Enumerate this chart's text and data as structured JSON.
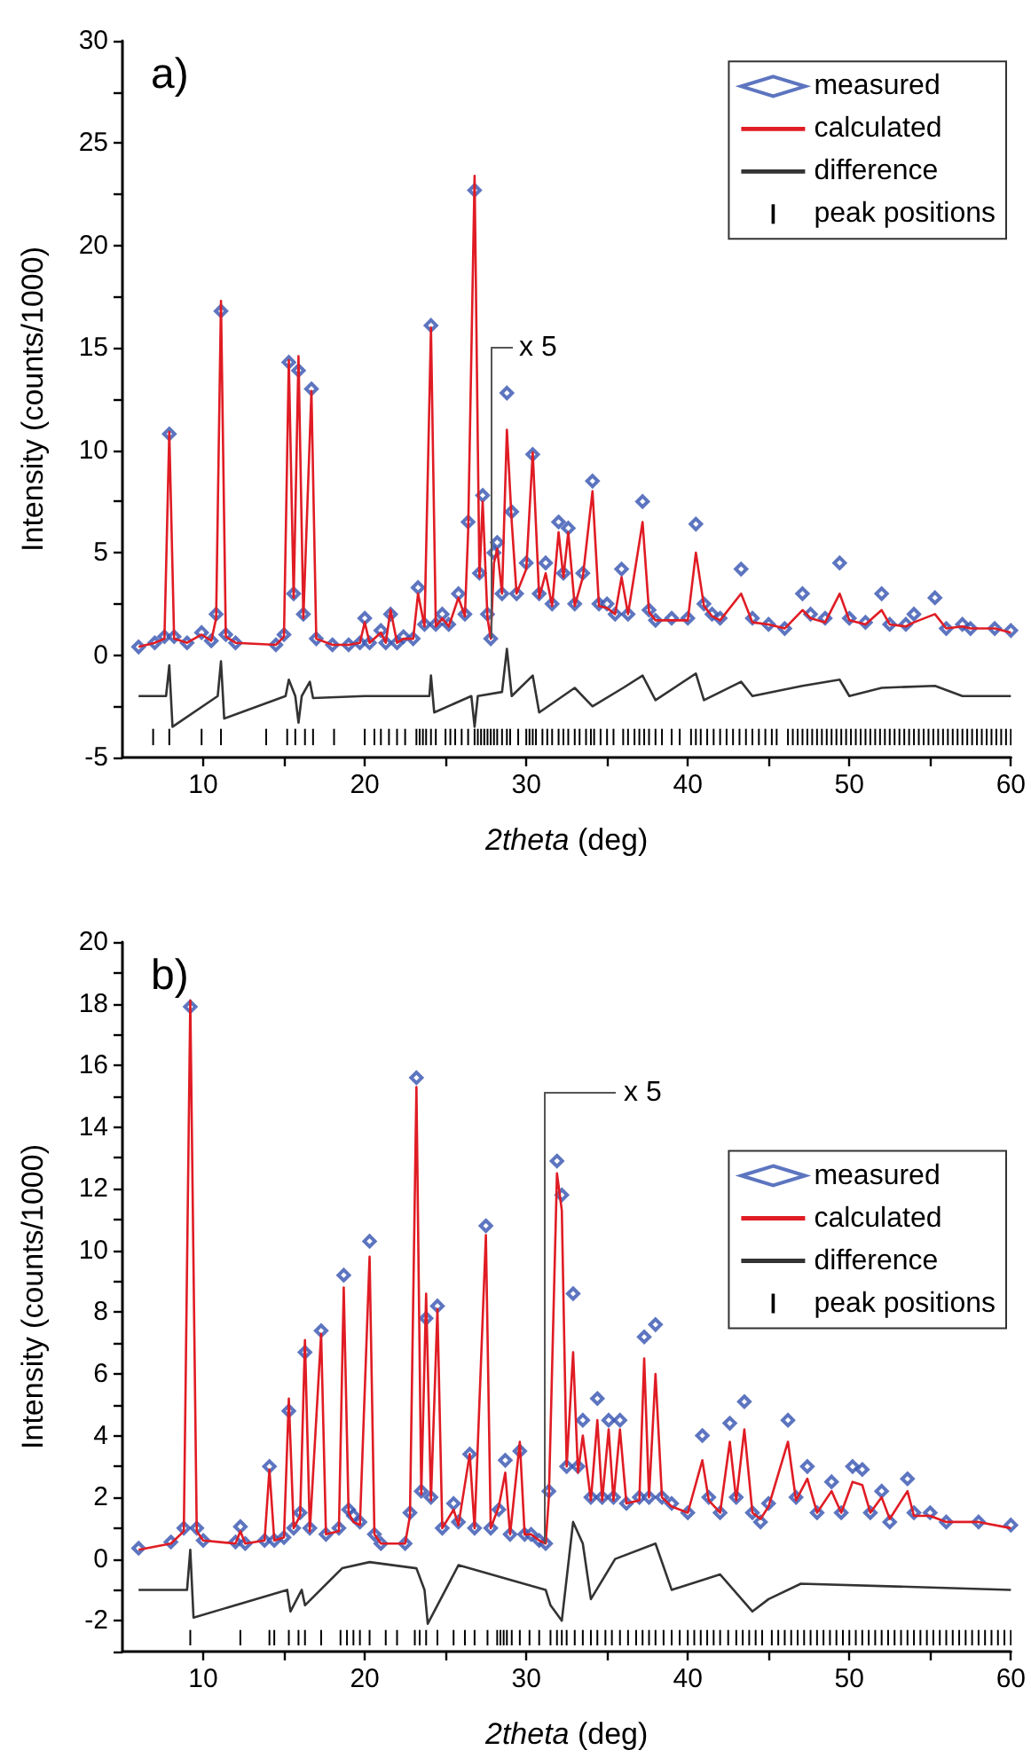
{
  "chart_data": [
    {
      "type": "scatter",
      "title": "a)",
      "xlabel": "2theta (deg)",
      "ylabel": "Intensity (counts/1000)",
      "legend": "top right",
      "grid": false,
      "xlim": [
        5,
        60
      ],
      "xticks": [
        10,
        {
          "value": 15,
          "label": null
        },
        20,
        {
          "value": 25,
          "label": null
        },
        30,
        {
          "value": 35,
          "label": null
        },
        40,
        {
          "value": 45,
          "label": null
        },
        50,
        {
          "value": 55,
          "label": null
        },
        60
      ],
      "ylim": [
        -5,
        30
      ],
      "yticks": [
        -5,
        {
          "value": -2.5,
          "label": null
        },
        0,
        {
          "value": 2.5,
          "label": null
        },
        5,
        {
          "value": 7.5,
          "label": null
        },
        10,
        {
          "value": 12.5,
          "label": null
        },
        15,
        {
          "value": 17.5,
          "label": null
        },
        20,
        {
          "value": 22.5,
          "label": null
        },
        25,
        {
          "value": 27.5,
          "label": null
        },
        30
      ],
      "annotations": [
        {
          "text": "x 5",
          "x": 27.8,
          "y": 0.8
        }
      ],
      "x": [
        6,
        7,
        7.6,
        7.9,
        8.2,
        9,
        9.9,
        10.5,
        10.8,
        11.1,
        11.4,
        12,
        14.5,
        15,
        15.3,
        15.6,
        15.9,
        16.2,
        16.7,
        17,
        18,
        19,
        19.7,
        20,
        20.3,
        21,
        21.3,
        21.6,
        22,
        22.4,
        23,
        23.3,
        23.7,
        24.1,
        24.4,
        24.8,
        25.2,
        25.8,
        26.2,
        26.4,
        26.8,
        27.1,
        27.3,
        27.6,
        27.8,
        28,
        28.2,
        28.5,
        28.8,
        29.1,
        29.4,
        30,
        30.4,
        30.8,
        31.2,
        31.6,
        32,
        32.3,
        32.6,
        33,
        33.5,
        34.1,
        34.5,
        35,
        35.5,
        35.9,
        36.3,
        37.2,
        37.6,
        38,
        39,
        40,
        40.5,
        41,
        41.5,
        42,
        43.3,
        44,
        45,
        46,
        47.1,
        47.6,
        48.5,
        49.4,
        50,
        51,
        52,
        52.5,
        53.5,
        54,
        55.3,
        56,
        57,
        57.5,
        59,
        60
      ],
      "series": [
        {
          "name": "measured",
          "marker": "diamond",
          "color": "#3552b0",
          "values": [
            0.4,
            0.6,
            0.9,
            10.8,
            0.9,
            0.6,
            1.1,
            0.7,
            2.0,
            16.8,
            1.0,
            0.6,
            0.5,
            1.0,
            14.3,
            3.0,
            13.9,
            2.0,
            13.0,
            0.8,
            0.5,
            0.5,
            0.6,
            1.8,
            0.6,
            1.2,
            0.6,
            2.0,
            0.6,
            0.9,
            0.8,
            3.3,
            1.5,
            16.1,
            1.5,
            2.0,
            1.5,
            3.0,
            2.0,
            6.5,
            22.7,
            4.0,
            7.8,
            2.0,
            0.8,
            5.0,
            5.5,
            3.0,
            12.8,
            7.0,
            3.0,
            4.5,
            9.8,
            3.0,
            4.5,
            2.5,
            6.5,
            4.0,
            6.2,
            2.5,
            4.0,
            8.5,
            2.5,
            2.5,
            2.0,
            4.2,
            2.0,
            7.5,
            2.2,
            1.7,
            1.8,
            1.8,
            6.4,
            2.5,
            2.0,
            1.8,
            4.2,
            1.8,
            1.5,
            1.3,
            3.0,
            2.0,
            1.8,
            4.5,
            1.8,
            1.6,
            3.0,
            1.5,
            1.5,
            2.0,
            2.8,
            1.3,
            1.5,
            1.3,
            1.3,
            1.2
          ]
        },
        {
          "name": "calculated",
          "type": "line",
          "line_style": "solid",
          "color": "#e01c24",
          "values": [
            0.4,
            0.6,
            0.8,
            10.9,
            0.8,
            0.6,
            1.0,
            0.7,
            1.8,
            17.3,
            0.9,
            0.6,
            0.5,
            0.9,
            14.4,
            2.8,
            14.6,
            1.8,
            12.9,
            0.8,
            0.5,
            0.5,
            0.6,
            1.6,
            0.6,
            1.1,
            0.6,
            2.2,
            0.6,
            0.8,
            0.8,
            3.0,
            1.4,
            16.0,
            1.4,
            1.8,
            1.4,
            2.8,
            1.9,
            6.0,
            23.4,
            3.8,
            7.5,
            1.8,
            0.8,
            4.5,
            5.2,
            3.0,
            11.0,
            6.5,
            3.0,
            4.2,
            9.9,
            2.8,
            4.0,
            2.4,
            6.0,
            3.8,
            6.0,
            2.4,
            3.8,
            8.0,
            2.4,
            2.3,
            2.0,
            3.8,
            2.0,
            6.5,
            2.1,
            1.7,
            1.7,
            1.7,
            5.0,
            2.4,
            1.9,
            1.7,
            3.0,
            1.6,
            1.5,
            1.3,
            2.2,
            1.8,
            1.6,
            3.0,
            1.7,
            1.5,
            2.2,
            1.5,
            1.4,
            1.6,
            2.0,
            1.3,
            1.4,
            1.3,
            1.3,
            1.1
          ]
        },
        {
          "name": "difference",
          "type": "line",
          "line_style": "solid",
          "color": "#333333",
          "x": [
            6,
            7.7,
            7.9,
            8.1,
            10.9,
            11.1,
            11.3,
            15.1,
            15.3,
            15.7,
            15.9,
            16.1,
            16.6,
            16.8,
            20,
            24,
            24.1,
            24.3,
            26.6,
            26.8,
            27,
            28.5,
            28.8,
            29.1,
            30.4,
            30.8,
            33,
            34.1,
            36,
            37.2,
            38,
            40.5,
            41,
            43.3,
            44,
            47.1,
            49.4,
            50,
            52,
            55.3,
            57,
            60
          ],
          "values": [
            -2,
            -2,
            -0.5,
            -3.5,
            -2,
            -0.3,
            -3.1,
            -2,
            -1.2,
            -2,
            -3.3,
            -2,
            -1.3,
            -2.1,
            -2,
            -2,
            -1,
            -2.8,
            -2,
            -3.5,
            -2,
            -1.8,
            0.3,
            -2,
            -1,
            -2.8,
            -1.6,
            -2.5,
            -1.6,
            -1,
            -2.2,
            -0.9,
            -2.2,
            -1.3,
            -2,
            -1.5,
            -1.2,
            -2,
            -1.6,
            -1.5,
            -2,
            -2
          ]
        },
        {
          "name": "peak positions",
          "type": "bar",
          "color": "#000000",
          "base": [
            -4.4,
            -4.4,
            -4.4,
            -4.4,
            -4.4,
            -4.4,
            -4.4,
            -4.4,
            -4.4,
            -4.4,
            -4.4,
            -4.4,
            -4.4,
            -4.4,
            -4.4,
            -4.4,
            -4.4,
            -4.4,
            -4.4,
            -4.4,
            -4.4,
            -4.4,
            -4.4,
            -4.4,
            -4.4,
            -4.4,
            -4.4,
            -4.4,
            -4.4,
            -4.4,
            -4.4,
            -4.4,
            -4.4,
            -4.4,
            -4.4,
            -4.4,
            -4.4,
            -4.4,
            -4.4,
            -4.4,
            -4.4,
            -4.4,
            -4.4,
            -4.4,
            -4.4,
            -4.4,
            -4.4,
            -4.4,
            -4.4,
            -4.4,
            -4.4,
            -4.4,
            -4.4,
            -4.4,
            -4.4,
            -4.4,
            -4.4,
            -4.4,
            -4.4,
            -4.4,
            -4.4,
            -4.4,
            -4.4,
            -4.4,
            -4.4,
            -4.4,
            -4.4,
            -4.4,
            -4.4,
            -4.4,
            -4.4,
            -4.4,
            -4.4,
            -4.4,
            -4.4,
            -4.4,
            -4.4,
            -4.4,
            -4.4,
            -4.4,
            -4.4,
            -4.4,
            -4.4,
            -4.4,
            -4.4,
            -4.4,
            -4.4,
            -4.4,
            -4.4,
            -4.4,
            -4.4,
            -4.4,
            -4.4,
            -4.4,
            -4.4,
            -4.4,
            -4.4,
            -4.4,
            -4.4,
            -4.4,
            -4.4,
            -4.4,
            -4.4,
            -4.4,
            -4.4,
            -4.4,
            -4.4,
            -4.4,
            -4.4,
            -4.4,
            -4.4,
            -4.4,
            -4.4,
            -4.4,
            -4.4,
            -4.4,
            -4.4,
            -4.4,
            -4.4,
            -4.4,
            -4.4,
            -4.4,
            -4.4,
            -4.4,
            -4.4,
            -4.4,
            -4.4,
            -4.4,
            -4.4
          ],
          "x": [
            6.9,
            7.9,
            9.9,
            11.1,
            13.9,
            15.2,
            15.7,
            16.3,
            16.8,
            18.1,
            20,
            20.6,
            21,
            21.5,
            22,
            22.5,
            23.2,
            23.4,
            23.6,
            23.8,
            24.1,
            24.4,
            25,
            25.3,
            25.6,
            26,
            26.4,
            26.8,
            27,
            27.2,
            27.4,
            27.6,
            27.8,
            28,
            28.2,
            28.5,
            28.8,
            29,
            29.5,
            30,
            30.2,
            30.4,
            30.6,
            31,
            31.3,
            31.6,
            32,
            32.3,
            32.6,
            33,
            33.3,
            33.7,
            34,
            34.2,
            34.6,
            35,
            35.4,
            36,
            36.3,
            36.7,
            37,
            37.3,
            37.6,
            38,
            38.4,
            39,
            39.5,
            40.2,
            40.5,
            40.8,
            41.2,
            41.6,
            42,
            42.4,
            42.8,
            43.2,
            43.6,
            44,
            44.4,
            44.8,
            45.2,
            45.5,
            46.2,
            46.5,
            46.8,
            47.1,
            47.4,
            47.7,
            48,
            48.3,
            48.6,
            48.9,
            49.2,
            49.5,
            49.8,
            50.1,
            50.4,
            50.7,
            51,
            51.3,
            51.6,
            51.9,
            52.2,
            52.5,
            52.8,
            53.1,
            53.4,
            53.7,
            54,
            54.3,
            54.6,
            54.9,
            55.2,
            55.5,
            55.8,
            56.1,
            56.4,
            56.7,
            57,
            57.3,
            57.6,
            57.9,
            58.2,
            58.5,
            58.8,
            59.1,
            59.4,
            59.7,
            60
          ],
          "values": [
            0.8,
            0.8,
            0.8,
            0.8,
            0.8,
            0.8,
            0.8,
            0.8,
            0.8,
            0.8,
            0.8,
            0.8,
            0.8,
            0.8,
            0.8,
            0.8,
            0.8,
            0.8,
            0.8,
            0.8,
            0.8,
            0.8,
            0.8,
            0.8,
            0.8,
            0.8,
            0.8,
            0.8,
            0.8,
            0.8,
            0.8,
            0.8,
            0.8,
            0.8,
            0.8,
            0.8,
            0.8,
            0.8,
            0.8,
            0.8,
            0.8,
            0.8,
            0.8,
            0.8,
            0.8,
            0.8,
            0.8,
            0.8,
            0.8,
            0.8,
            0.8,
            0.8,
            0.8,
            0.8,
            0.8,
            0.8,
            0.8,
            0.8,
            0.8,
            0.8,
            0.8,
            0.8,
            0.8,
            0.8,
            0.8,
            0.8,
            0.8,
            0.8,
            0.8,
            0.8,
            0.8,
            0.8,
            0.8,
            0.8,
            0.8,
            0.8,
            0.8,
            0.8,
            0.8,
            0.8,
            0.8,
            0.8,
            0.8,
            0.8,
            0.8,
            0.8,
            0.8,
            0.8,
            0.8,
            0.8,
            0.8,
            0.8,
            0.8,
            0.8,
            0.8,
            0.8,
            0.8,
            0.8,
            0.8,
            0.8,
            0.8,
            0.8,
            0.8,
            0.8,
            0.8,
            0.8,
            0.8,
            0.8,
            0.8,
            0.8,
            0.8,
            0.8,
            0.8,
            0.8,
            0.8,
            0.8,
            0.8,
            0.8,
            0.8,
            0.8,
            0.8,
            0.8,
            0.8,
            0.8,
            0.8,
            0.8,
            0.8,
            0.8,
            0.8
          ]
        }
      ]
    },
    {
      "type": "scatter",
      "title": "b)",
      "xlabel": "2theta (deg)",
      "ylabel": "Intensity (counts/1000)",
      "legend": "right",
      "grid": false,
      "xlim": [
        5,
        60
      ],
      "xticks": [
        10,
        {
          "value": 15,
          "label": null
        },
        20,
        {
          "value": 25,
          "label": null
        },
        30,
        {
          "value": 35,
          "label": null
        },
        40,
        {
          "value": 45,
          "label": null
        },
        50,
        {
          "value": 55,
          "label": null
        },
        60
      ],
      "ylim": [
        -3,
        20
      ],
      "yticks": [
        {
          "value": -3,
          "label": null
        },
        -2,
        {
          "value": -1,
          "label": null
        },
        0,
        {
          "value": 1,
          "label": null
        },
        2,
        {
          "value": 3,
          "label": null
        },
        4,
        {
          "value": 5,
          "label": null
        },
        6,
        {
          "value": 7,
          "label": null
        },
        8,
        {
          "value": 9,
          "label": null
        },
        10,
        {
          "value": 11,
          "label": null
        },
        12,
        {
          "value": 13,
          "label": null
        },
        14,
        {
          "value": 15,
          "label": null
        },
        16,
        {
          "value": 17,
          "label": null
        },
        18,
        {
          "value": 19,
          "label": null
        },
        20
      ],
      "annotations": [
        {
          "text": "x 5",
          "x": 31.2,
          "y": 0.5
        }
      ],
      "x": [
        6,
        8,
        8.8,
        9.2,
        9.6,
        10,
        12,
        12.3,
        12.6,
        13.8,
        14.1,
        14.4,
        15,
        15.3,
        15.6,
        16,
        16.3,
        16.6,
        17.3,
        17.6,
        18.4,
        18.7,
        19,
        19.3,
        19.7,
        20.3,
        20.6,
        21,
        22.5,
        22.8,
        23.2,
        23.5,
        23.8,
        24.1,
        24.5,
        24.8,
        25.5,
        25.8,
        26.5,
        26.8,
        27.5,
        27.8,
        28.3,
        28.7,
        29,
        29.6,
        29.9,
        30.3,
        30.8,
        31.2,
        31.4,
        31.9,
        32.2,
        32.5,
        32.9,
        33.2,
        33.5,
        34,
        34.4,
        34.7,
        35.1,
        35.4,
        35.8,
        36.2,
        37,
        37.3,
        37.6,
        38,
        38.4,
        39,
        40,
        40.9,
        41.3,
        42,
        42.6,
        43,
        43.5,
        44,
        44.5,
        45,
        46.2,
        46.7,
        47.4,
        48,
        48.9,
        49.5,
        50.2,
        50.8,
        51.3,
        52,
        52.5,
        53.6,
        54,
        55,
        56,
        58,
        60
      ],
      "series": [
        {
          "name": "measured",
          "marker": "diamond",
          "color": "#3552b0",
          "values": [
            0.35,
            0.55,
            1.0,
            17.9,
            1.0,
            0.6,
            0.55,
            1.05,
            0.5,
            0.6,
            3.0,
            0.6,
            0.7,
            4.8,
            1.0,
            1.5,
            6.7,
            1.0,
            7.4,
            0.8,
            1.0,
            9.2,
            1.6,
            1.4,
            1.2,
            10.3,
            0.8,
            0.5,
            0.5,
            1.5,
            15.6,
            2.2,
            7.8,
            2.0,
            8.2,
            1.0,
            1.8,
            1.2,
            3.4,
            1.0,
            10.8,
            1.0,
            1.6,
            3.2,
            0.8,
            3.5,
            0.8,
            0.8,
            0.6,
            0.5,
            2.2,
            12.9,
            11.8,
            3.0,
            8.6,
            3.0,
            4.5,
            2.0,
            5.2,
            2.0,
            4.5,
            2.0,
            4.5,
            1.8,
            2.0,
            7.2,
            2.0,
            7.6,
            2.0,
            1.8,
            1.5,
            4.0,
            2.0,
            1.5,
            4.4,
            2.0,
            5.1,
            1.5,
            1.2,
            1.8,
            4.5,
            2.0,
            3.0,
            1.5,
            2.5,
            1.5,
            3.0,
            2.9,
            1.5,
            2.2,
            1.2,
            2.6,
            1.5,
            1.5,
            1.2,
            1.2,
            1.1
          ]
        },
        {
          "name": "calculated",
          "type": "line",
          "line_style": "solid",
          "color": "#e01c24",
          "values": [
            0.3,
            0.5,
            0.9,
            18.1,
            0.9,
            0.6,
            0.5,
            0.9,
            0.5,
            0.6,
            2.9,
            0.6,
            0.7,
            5.2,
            1.0,
            1.4,
            7.1,
            0.9,
            7.3,
            0.8,
            0.9,
            8.8,
            1.5,
            1.2,
            1.1,
            9.8,
            0.8,
            0.5,
            0.5,
            1.4,
            15.3,
            2.1,
            8.6,
            1.9,
            8.1,
            1.0,
            1.6,
            1.1,
            3.4,
            1.0,
            10.5,
            1.0,
            1.7,
            2.8,
            0.8,
            3.8,
            0.8,
            0.8,
            0.6,
            0.5,
            2.0,
            12.5,
            11.3,
            3.0,
            6.7,
            2.8,
            4.0,
            1.9,
            4.5,
            1.9,
            4.2,
            1.9,
            4.2,
            1.8,
            1.9,
            6.5,
            2.0,
            6.0,
            2.0,
            1.7,
            1.5,
            3.2,
            1.9,
            1.5,
            3.8,
            1.9,
            4.2,
            1.5,
            1.3,
            1.7,
            3.8,
            1.9,
            2.6,
            1.5,
            2.2,
            1.5,
            2.5,
            2.4,
            1.5,
            2.0,
            1.3,
            2.2,
            1.4,
            1.4,
            1.2,
            1.2,
            1.0
          ]
        },
        {
          "name": "difference",
          "type": "line",
          "line_style": "solid",
          "color": "#333333",
          "x": [
            6,
            9,
            9.2,
            9.4,
            15.2,
            15.4,
            16.1,
            16.3,
            18.6,
            20.3,
            23.2,
            23.7,
            23.9,
            25.8,
            31.2,
            31.5,
            32.2,
            32.9,
            33.5,
            34,
            35.5,
            38,
            39,
            42,
            44,
            45,
            47,
            60
          ],
          "values": [
            -1,
            -1,
            0.3,
            -1.9,
            -1,
            -1.7,
            -1,
            -1.5,
            -0.3,
            -0.1,
            -0.3,
            -1,
            -2.1,
            -0.2,
            -1,
            -1.5,
            -2.0,
            1.2,
            0.5,
            -1.3,
            0,
            0.5,
            -1,
            -0.5,
            -1.7,
            -1.3,
            -0.8,
            -1
          ]
        },
        {
          "name": "peak positions",
          "type": "bar",
          "color": "#000000",
          "base": [
            -2.8,
            -2.8,
            -2.8,
            -2.8,
            -2.8,
            -2.8,
            -2.8,
            -2.8,
            -2.8,
            -2.8,
            -2.8,
            -2.8,
            -2.8,
            -2.8,
            -2.8,
            -2.8,
            -2.8,
            -2.8,
            -2.8,
            -2.8,
            -2.8,
            -2.8,
            -2.8,
            -2.8,
            -2.8,
            -2.8,
            -2.8,
            -2.8,
            -2.8,
            -2.8,
            -2.8,
            -2.8,
            -2.8,
            -2.8,
            -2.8,
            -2.8,
            -2.8,
            -2.8,
            -2.8,
            -2.8,
            -2.8,
            -2.8,
            -2.8,
            -2.8,
            -2.8,
            -2.8,
            -2.8,
            -2.8,
            -2.8,
            -2.8,
            -2.8,
            -2.8,
            -2.8,
            -2.8,
            -2.8,
            -2.8,
            -2.8,
            -2.8,
            -2.8,
            -2.8,
            -2.8,
            -2.8,
            -2.8,
            -2.8,
            -2.8,
            -2.8,
            -2.8,
            -2.8,
            -2.8,
            -2.8,
            -2.8,
            -2.8,
            -2.8,
            -2.8,
            -2.8,
            -2.8,
            -2.8,
            -2.8,
            -2.8,
            -2.8,
            -2.8,
            -2.8,
            -2.8,
            -2.8,
            -2.8,
            -2.8,
            -2.8,
            -2.8,
            -2.8,
            -2.8,
            -2.8,
            -2.8,
            -2.8,
            -2.8,
            -2.8,
            -2.8,
            -2.8,
            -2.8,
            -2.8,
            -2.8
          ],
          "x": [
            9.2,
            12.3,
            14.1,
            14.4,
            15.3,
            15.9,
            16.3,
            17.3,
            18.5,
            18.9,
            19.3,
            19.7,
            20.3,
            21.3,
            22,
            23.1,
            23.4,
            23.8,
            24.5,
            25.5,
            26.2,
            26.8,
            27.6,
            28.2,
            28.4,
            28.6,
            28.8,
            29.1,
            29.6,
            30.2,
            30.8,
            31.5,
            31.9,
            32.2,
            32.5,
            33,
            33.5,
            34,
            34.4,
            34.9,
            35.3,
            35.8,
            36.3,
            36.8,
            37.2,
            37.6,
            38,
            38.5,
            39,
            39.5,
            40,
            40.4,
            40.8,
            41.2,
            41.6,
            42,
            42.5,
            43,
            43.4,
            43.8,
            44.2,
            44.6,
            45.2,
            45.6,
            46,
            46.4,
            46.8,
            47.2,
            47.6,
            48,
            48.4,
            48.8,
            49.2,
            49.6,
            50,
            50.4,
            50.8,
            51.2,
            51.6,
            52,
            52.4,
            52.8,
            53.2,
            53.6,
            54,
            54.4,
            54.8,
            55.2,
            55.6,
            56,
            56.4,
            56.8,
            57.2,
            57.6,
            58,
            58.4,
            58.8,
            59.2,
            59.6,
            60
          ],
          "values": [
            0.5,
            0.5,
            0.5,
            0.5,
            0.5,
            0.5,
            0.5,
            0.5,
            0.5,
            0.5,
            0.5,
            0.5,
            0.5,
            0.5,
            0.5,
            0.5,
            0.5,
            0.5,
            0.5,
            0.5,
            0.5,
            0.5,
            0.5,
            0.5,
            0.5,
            0.5,
            0.5,
            0.5,
            0.5,
            0.5,
            0.5,
            0.5,
            0.5,
            0.5,
            0.5,
            0.5,
            0.5,
            0.5,
            0.5,
            0.5,
            0.5,
            0.5,
            0.5,
            0.5,
            0.5,
            0.5,
            0.5,
            0.5,
            0.5,
            0.5,
            0.5,
            0.5,
            0.5,
            0.5,
            0.5,
            0.5,
            0.5,
            0.5,
            0.5,
            0.5,
            0.5,
            0.5,
            0.5,
            0.5,
            0.5,
            0.5,
            0.5,
            0.5,
            0.5,
            0.5,
            0.5,
            0.5,
            0.5,
            0.5,
            0.5,
            0.5,
            0.5,
            0.5,
            0.5,
            0.5,
            0.5,
            0.5,
            0.5,
            0.5,
            0.5,
            0.5,
            0.5,
            0.5,
            0.5,
            0.5,
            0.5,
            0.5,
            0.5,
            0.5,
            0.5,
            0.5,
            0.5,
            0.5,
            0.5,
            0.5
          ]
        }
      ]
    }
  ]
}
